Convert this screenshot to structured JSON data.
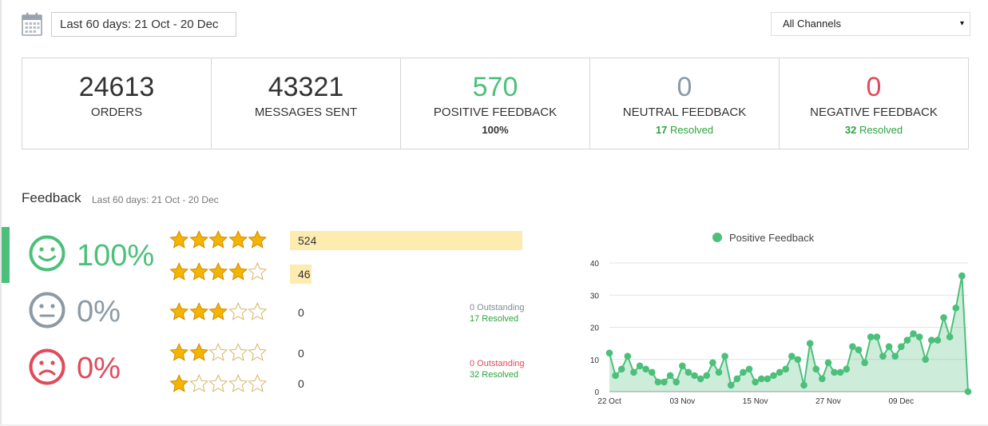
{
  "header": {
    "date_range": "Last 60 days: 21 Oct - 20 Dec",
    "channel": "All Channels",
    "calendar_icon": "calendar-icon",
    "caret_icon": "▾"
  },
  "stats": [
    {
      "value": "24613",
      "label": "ORDERS",
      "sub": "",
      "sub_green": "",
      "color": "#333333"
    },
    {
      "value": "43321",
      "label": "MESSAGES SENT",
      "sub": "",
      "sub_green": "",
      "color": "#333333"
    },
    {
      "value": "570",
      "label": "POSITIVE FEEDBACK",
      "sub": "100%",
      "sub_green": "",
      "color": "#4cc07a"
    },
    {
      "value": "0",
      "label": "NEUTRAL FEEDBACK",
      "sub": "17",
      "sub_green": " Resolved",
      "color": "#8c9aa5"
    },
    {
      "value": "0",
      "label": "NEGATIVE FEEDBACK",
      "sub": "32",
      "sub_green": " Resolved",
      "color": "#e04b5b"
    }
  ],
  "feedback": {
    "title": "Feedback",
    "subtitle": "Last 60 days: 21 Oct - 20 Dec",
    "positive": {
      "pct": "100%",
      "color": "#4cc07a",
      "icon": "smile-face-icon"
    },
    "neutral": {
      "pct": "0%",
      "color": "#8c9aa5",
      "icon": "neutral-face-icon"
    },
    "negative": {
      "pct": "0%",
      "color": "#e04b5b",
      "icon": "sad-face-icon"
    },
    "ratings": [
      {
        "stars": 5,
        "count": "524"
      },
      {
        "stars": 4,
        "count": "46"
      },
      {
        "stars": 3,
        "count": "0"
      },
      {
        "stars": 2,
        "count": "0"
      },
      {
        "stars": 1,
        "count": "0"
      }
    ],
    "neutral_status": {
      "outstanding": "0 Outstanding",
      "resolved": "17 Resolved"
    },
    "negative_status": {
      "outstanding": "0 Outstanding",
      "resolved": "32 Resolved"
    }
  },
  "chart_data": {
    "type": "area",
    "legend": "Positive Feedback",
    "color": "#4cc07a",
    "x_tick_labels": [
      "22 Oct",
      "03 Nov",
      "15 Nov",
      "27 Nov",
      "09 Dec"
    ],
    "y_ticks": [
      0,
      10,
      20,
      30,
      40
    ],
    "ylim": [
      0,
      40
    ],
    "values": [
      12,
      5,
      7,
      11,
      6,
      8,
      7,
      6,
      3,
      3,
      5,
      3,
      8,
      6,
      5,
      4,
      5,
      9,
      6,
      11,
      2,
      4,
      6,
      7,
      3,
      4,
      4,
      5,
      6,
      7,
      11,
      10,
      2,
      15,
      7,
      4,
      9,
      6,
      6,
      7,
      14,
      13,
      9,
      17,
      17,
      11,
      14,
      11,
      14,
      16,
      18,
      17,
      10,
      16,
      16,
      23,
      17,
      26,
      36,
      0
    ],
    "grid": true,
    "legend_position": "top"
  }
}
